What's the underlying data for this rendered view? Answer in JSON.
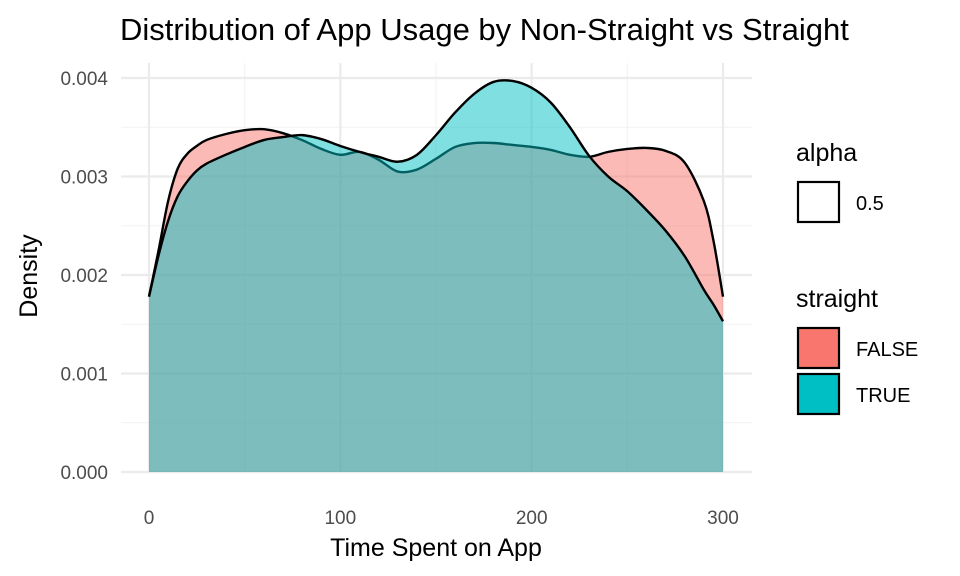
{
  "chart_data": {
    "type": "area",
    "subtype": "density",
    "title": "Distribution of App Usage by Non-Straight vs Straight",
    "xlabel": "Time Spent on App",
    "ylabel": "Density",
    "xlim": [
      0,
      300
    ],
    "ylim": [
      0,
      0.004
    ],
    "x_ticks": [
      0,
      100,
      200,
      300
    ],
    "x_tick_labels": [
      "0",
      "100",
      "200",
      "300"
    ],
    "y_ticks": [
      0,
      0.001,
      0.002,
      0.003,
      0.004
    ],
    "y_tick_labels": [
      "0.000",
      "0.001",
      "0.002",
      "0.003",
      "0.004"
    ],
    "grid": true,
    "fill_opacity": 0.5,
    "legend_position": "right",
    "legends": [
      {
        "title": "alpha",
        "entries": [
          {
            "label": "0.5"
          }
        ]
      },
      {
        "title": "straight",
        "entries": [
          {
            "label": "FALSE",
            "color": "#F8766D"
          },
          {
            "label": "TRUE",
            "color": "#00BFC4"
          }
        ]
      }
    ],
    "series": [
      {
        "name": "FALSE",
        "color": "#F8766D",
        "x": [
          0,
          5,
          10,
          15,
          20,
          25,
          30,
          40,
          50,
          60,
          70,
          80,
          90,
          100,
          110,
          120,
          130,
          140,
          150,
          160,
          170,
          180,
          190,
          200,
          210,
          220,
          230,
          240,
          250,
          260,
          270,
          280,
          290,
          295,
          300
        ],
        "y": [
          0.00178,
          0.00225,
          0.00275,
          0.00308,
          0.00323,
          0.00331,
          0.00337,
          0.00343,
          0.00347,
          0.00348,
          0.00344,
          0.00337,
          0.00328,
          0.00322,
          0.00325,
          0.00317,
          0.00305,
          0.00307,
          0.00318,
          0.0033,
          0.00334,
          0.00334,
          0.00332,
          0.0033,
          0.00327,
          0.00322,
          0.0032,
          0.00325,
          0.00328,
          0.00329,
          0.00326,
          0.00314,
          0.00275,
          0.00235,
          0.00178
        ]
      },
      {
        "name": "TRUE",
        "color": "#00BFC4",
        "x": [
          0,
          5,
          10,
          15,
          20,
          25,
          30,
          40,
          50,
          60,
          70,
          80,
          90,
          100,
          110,
          120,
          130,
          140,
          150,
          160,
          170,
          180,
          190,
          200,
          210,
          220,
          230,
          240,
          250,
          260,
          270,
          280,
          290,
          295,
          300
        ],
        "y": [
          0.00178,
          0.0022,
          0.00255,
          0.0028,
          0.00295,
          0.00306,
          0.00313,
          0.00322,
          0.0033,
          0.00337,
          0.0034,
          0.00342,
          0.00338,
          0.00331,
          0.00325,
          0.0032,
          0.00315,
          0.00322,
          0.00342,
          0.00365,
          0.00384,
          0.00396,
          0.00397,
          0.0039,
          0.00375,
          0.0035,
          0.00321,
          0.003,
          0.00285,
          0.00266,
          0.00245,
          0.00219,
          0.00185,
          0.0017,
          0.00153
        ]
      }
    ]
  }
}
